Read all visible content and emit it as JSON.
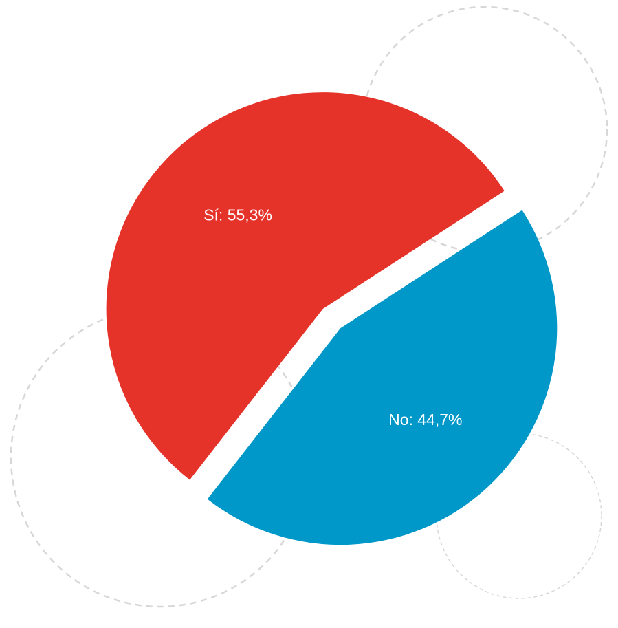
{
  "chart_data": {
    "type": "pie",
    "slices": [
      {
        "label": "Sí",
        "value": 55.3,
        "display": "Sí: 55,3%",
        "color": "#e5332a",
        "exploded": false
      },
      {
        "label": "No",
        "value": 44.7,
        "display": "No: 44,7%",
        "color": "#0097c9",
        "exploded": true
      }
    ],
    "legend": "none",
    "data_labels": "inside"
  }
}
